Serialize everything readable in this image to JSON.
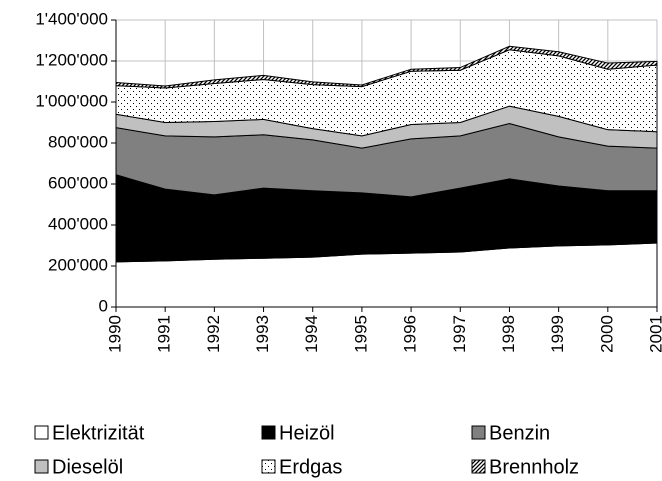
{
  "chart_data": {
    "type": "stacked-area",
    "categories": [
      "1990",
      "1991",
      "1992",
      "1993",
      "1994",
      "1995",
      "1996",
      "1997",
      "1998",
      "1999",
      "2000",
      "2001"
    ],
    "series": [
      {
        "name": "Elektrizität",
        "color": "#ffffff",
        "values": [
          220000,
          225000,
          233000,
          238000,
          243000,
          258000,
          263000,
          268000,
          288000,
          298000,
          303000,
          312000
        ]
      },
      {
        "name": "Heizöl",
        "color": "#000000",
        "values": [
          425000,
          350000,
          314000,
          342000,
          324000,
          299000,
          274000,
          312000,
          337000,
          292000,
          264000,
          255000
        ]
      },
      {
        "name": "Benzin",
        "color": "#808080",
        "values": [
          230000,
          260000,
          283000,
          260000,
          248000,
          218000,
          283000,
          255000,
          270000,
          240000,
          218000,
          208000
        ]
      },
      {
        "name": "Dieselöl",
        "color": "#c0c0c0",
        "values": [
          65000,
          65000,
          75000,
          75000,
          55000,
          60000,
          70000,
          65000,
          85000,
          100000,
          80000,
          80000
        ]
      },
      {
        "name": "Erdgas",
        "color": "#ffffff",
        "pattern": "dots",
        "values": [
          140000,
          168000,
          185000,
          195000,
          215000,
          240000,
          260000,
          255000,
          275000,
          295000,
          295000,
          325000
        ]
      },
      {
        "name": "Brennholz",
        "color": "#ffffff",
        "pattern": "hatch",
        "values": [
          15000,
          10000,
          18000,
          20000,
          13000,
          8000,
          10000,
          13000,
          17000,
          20000,
          30000,
          18000
        ]
      }
    ],
    "ylim": [
      0,
      1400000
    ],
    "yticks": [
      0,
      {
        "value": 200000,
        "label": "200'000"
      },
      {
        "value": 400000,
        "label": "400'000"
      },
      {
        "value": 600000,
        "label": "600'000"
      },
      {
        "value": 800000,
        "label": "800'000"
      },
      {
        "value": 1000000,
        "label": "1'000'000"
      },
      {
        "value": 1200000,
        "label": "1'200'000"
      },
      {
        "value": 1400000,
        "label": "1'400'000"
      }
    ],
    "grid": true,
    "legend": "bottom"
  }
}
